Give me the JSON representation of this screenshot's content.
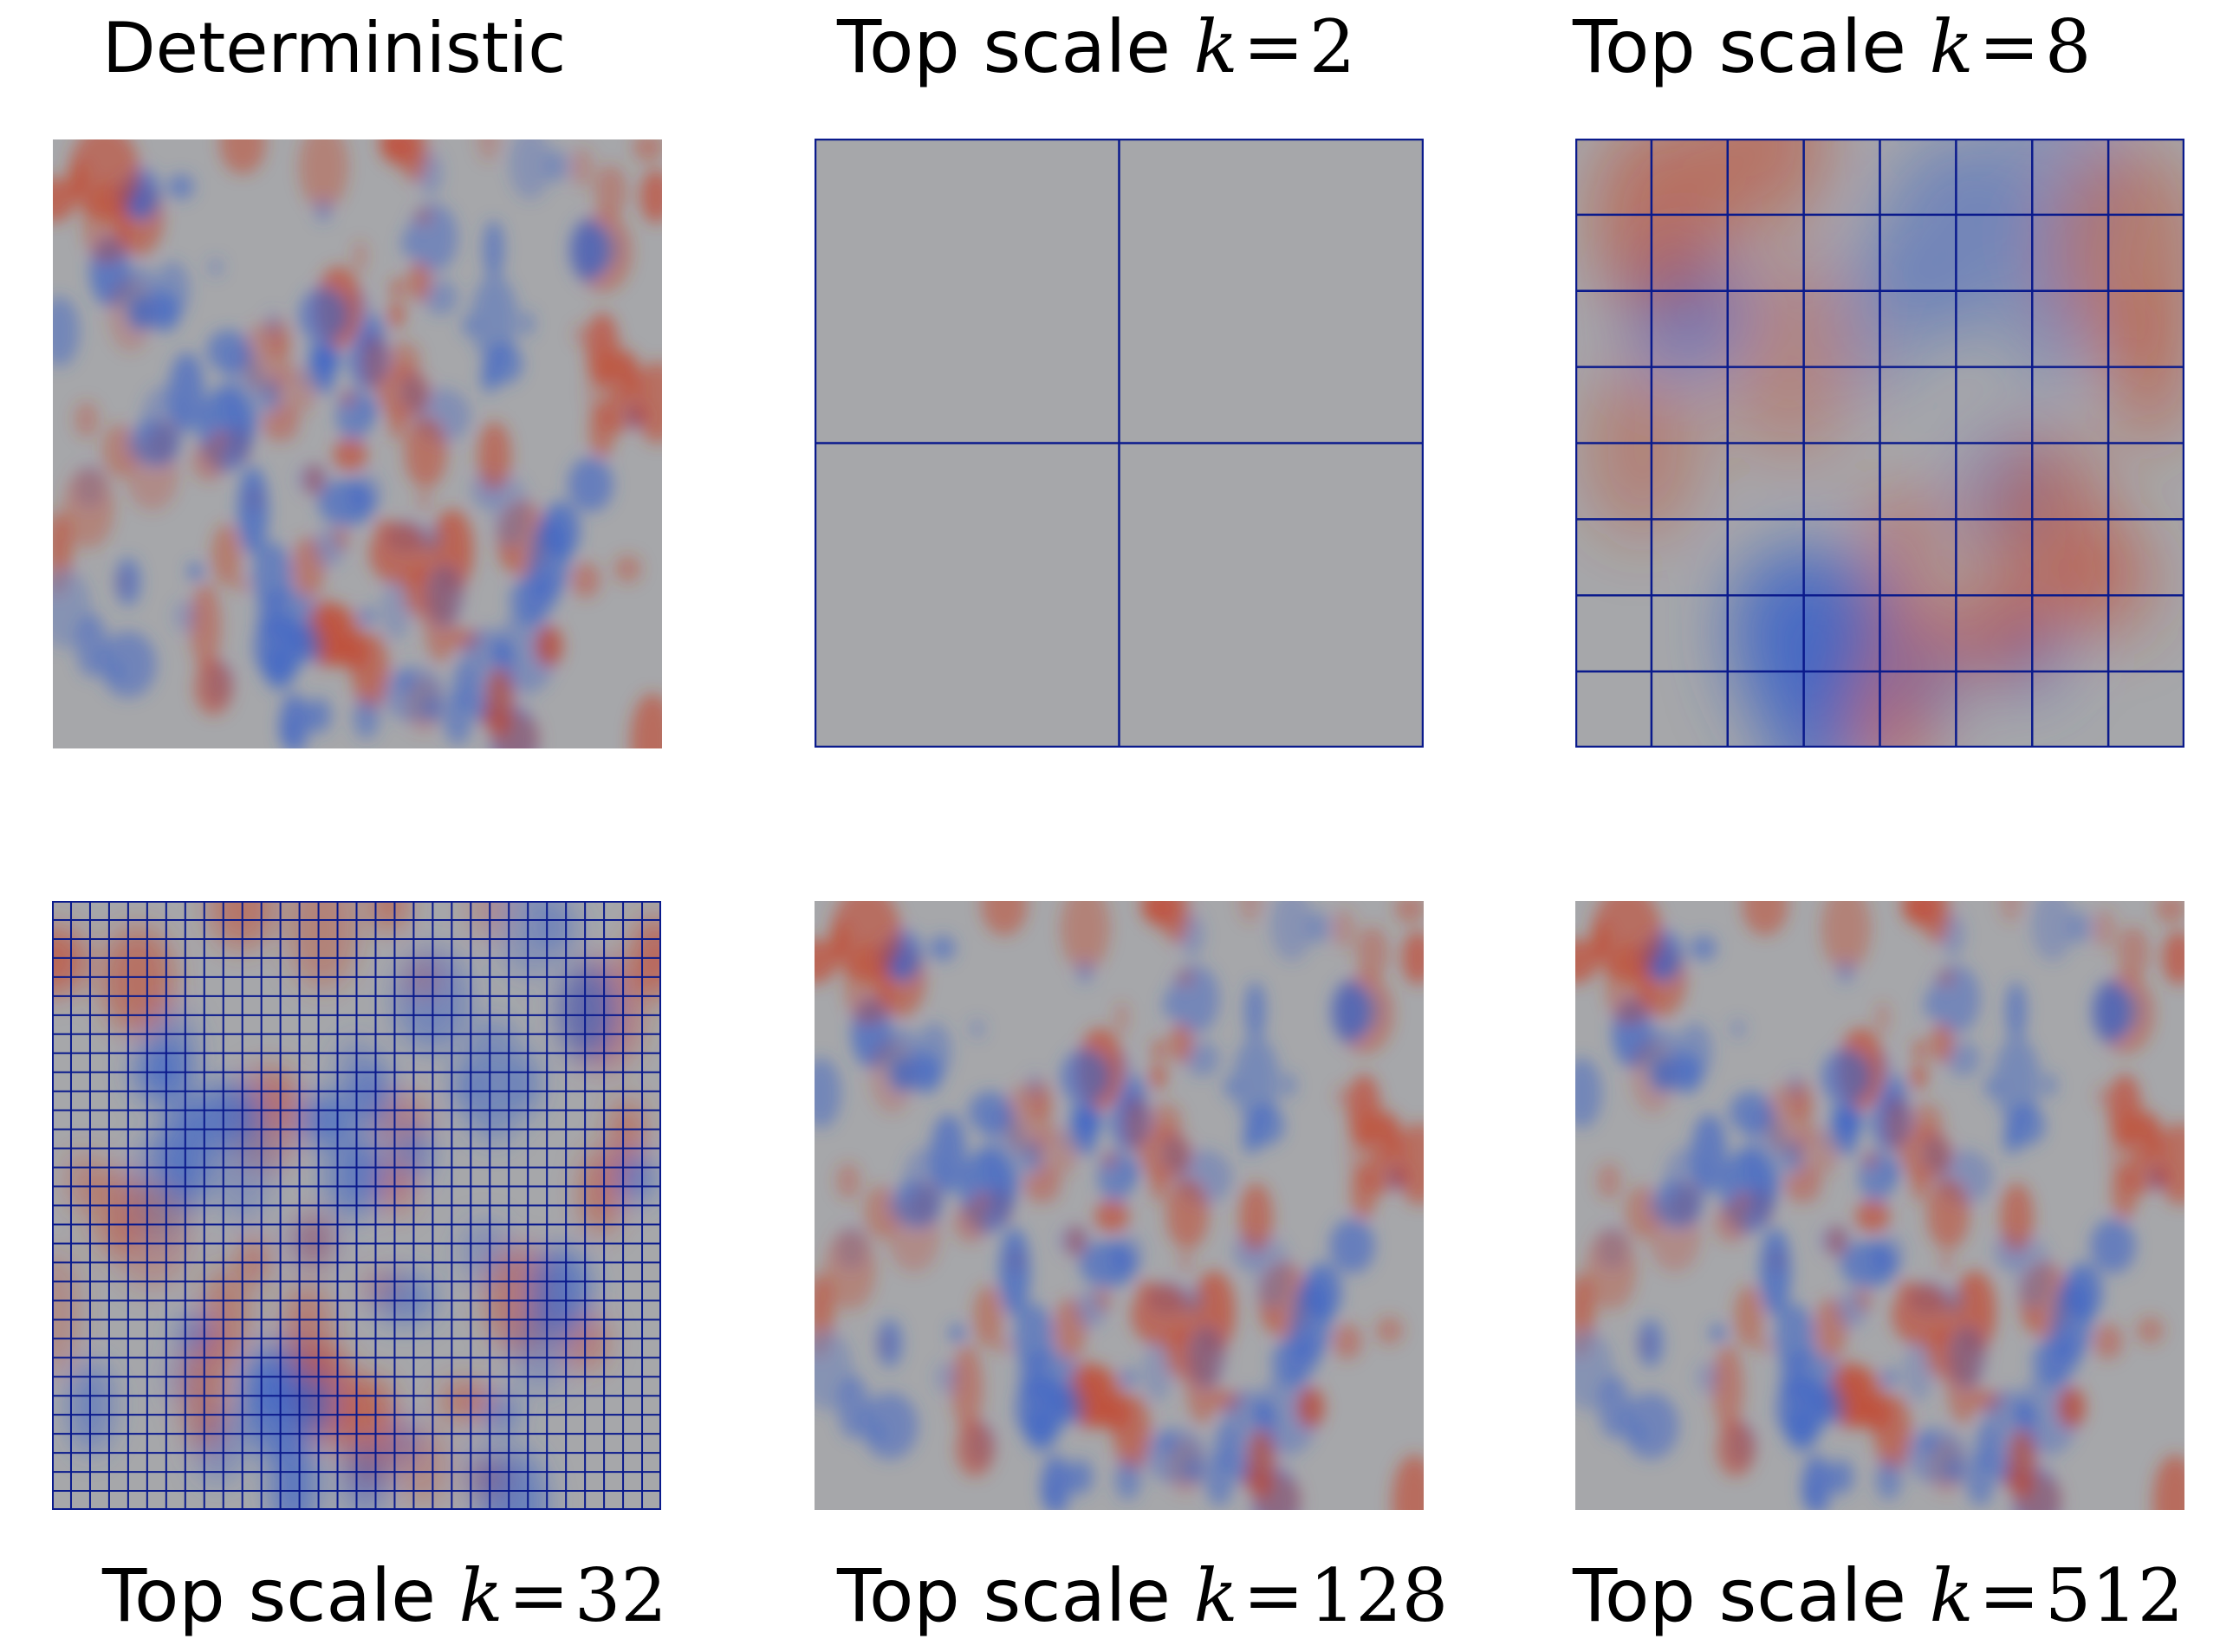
{
  "figure": {
    "panels": [
      {
        "id": "deterministic",
        "title": "Deterministic",
        "prefix": "",
        "k_symbol": "",
        "eq": "",
        "k_value": "",
        "grid_cells": 0,
        "smoothness": "fine"
      },
      {
        "id": "k2",
        "title": "",
        "prefix": "Top scale",
        "k_symbol": "k",
        "eq": "=",
        "k_value": "2",
        "grid_cells": 2,
        "smoothness": "flat"
      },
      {
        "id": "k8",
        "title": "",
        "prefix": "Top scale",
        "k_symbol": "k",
        "eq": "=",
        "k_value": "8",
        "grid_cells": 8,
        "smoothness": "coarse"
      },
      {
        "id": "k32",
        "title": "",
        "prefix": "Top scale",
        "k_symbol": "k",
        "eq": "=",
        "k_value": "32",
        "grid_cells": 32,
        "smoothness": "medium"
      },
      {
        "id": "k128",
        "title": "",
        "prefix": "Top scale",
        "k_symbol": "k",
        "eq": "=",
        "k_value": "128",
        "grid_cells": 0,
        "smoothness": "fine"
      },
      {
        "id": "k512",
        "title": "",
        "prefix": "Top scale",
        "k_symbol": "k",
        "eq": "=",
        "k_value": "512",
        "grid_cells": 0,
        "smoothness": "fine"
      }
    ],
    "colors": {
      "grid_line": "#0a1a8c",
      "neutral": "#a6a7aa",
      "cool": "#3a62c8",
      "warm": "#c4442a"
    }
  }
}
